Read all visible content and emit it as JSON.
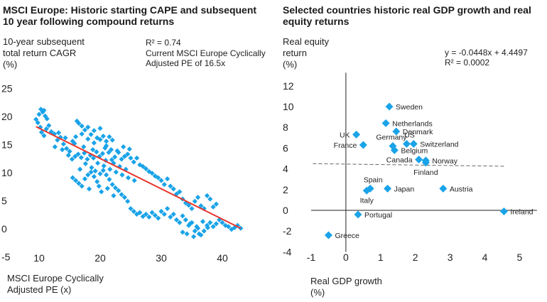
{
  "colors": {
    "marker": "#1aa3e8",
    "fit": "#e8352e",
    "axis": "#222222",
    "dash": "#666666"
  },
  "left_text": {
    "title_line1": "MSCI Europe: Historic starting CAPE and subsequent",
    "title_line2": "10 year following compound returns",
    "ylabel_line1": "10-year subsequent",
    "ylabel_line2": "total return CAGR",
    "ylabel_line3": "(%)",
    "r2": "R² = 0.74",
    "note_line1": "Current MSCI Europe Cyclically",
    "note_line2": "Adjusted PE of 16.5x",
    "xlabel_line1": "MSCI Europe Cyclically",
    "xlabel_line2": "Adjusted PE (x)"
  },
  "right_text": {
    "title_line1": "Selected countries historic real GDP growth and real",
    "title_line2": "equity returns",
    "ylabel_line1": "Real equity",
    "ylabel_line2": "return",
    "ylabel_line3": "(%)",
    "equation": "y = -0.0448x + 4.4497",
    "r2": "R² = 0.0002",
    "xlabel_line1": "Real GDP growth",
    "xlabel_line2": "(%)"
  },
  "chart_data": [
    {
      "type": "scatter",
      "title": "MSCI Europe: Historic starting CAPE and subsequent 10 year following compound returns",
      "xlabel": "MSCI Europe Cyclically Adjusted PE (x)",
      "ylabel": "10-year subsequent total return CAGR (%)",
      "xlim": [
        8,
        45
      ],
      "ylim": [
        -5,
        25
      ],
      "xticks": [
        10,
        20,
        30,
        40
      ],
      "yticks": [
        -5,
        0,
        5,
        10,
        15,
        20,
        25
      ],
      "annotations": [
        "R² = 0.74",
        "Current MSCI Europe Cyclically Adjusted PE of 16.5x"
      ],
      "trendline": {
        "x": [
          9.5,
          43
        ],
        "y": [
          18.2,
          0.1
        ]
      },
      "points": [
        [
          9.5,
          19.5
        ],
        [
          9.8,
          18.9
        ],
        [
          10,
          20.4
        ],
        [
          10.3,
          21.3
        ],
        [
          10.6,
          20.8
        ],
        [
          10.8,
          21.1
        ],
        [
          11,
          20.1
        ],
        [
          11.3,
          19.6
        ],
        [
          10.4,
          17.2
        ],
        [
          10.8,
          16.6
        ],
        [
          11.2,
          17.8
        ],
        [
          11.6,
          18.4
        ],
        [
          10.2,
          18.1
        ],
        [
          12,
          17.3
        ],
        [
          12.5,
          16.9
        ],
        [
          13,
          15.8
        ],
        [
          13.5,
          16.3
        ],
        [
          14,
          15.1
        ],
        [
          14.5,
          14.3
        ],
        [
          15,
          13.8
        ],
        [
          15.5,
          15.6
        ],
        [
          16,
          16.4
        ],
        [
          16.5,
          18.8
        ],
        [
          16.2,
          19.2
        ],
        [
          17,
          18.3
        ],
        [
          17.5,
          17.6
        ],
        [
          18,
          18.1
        ],
        [
          18.5,
          16.8
        ],
        [
          19,
          17.5
        ],
        [
          19.5,
          16.2
        ],
        [
          20,
          17.9
        ],
        [
          20.5,
          16.5
        ],
        [
          21,
          15.6
        ],
        [
          21.5,
          16.4
        ],
        [
          22,
          15.8
        ],
        [
          17,
          16.9
        ],
        [
          18,
          16
        ],
        [
          19,
          15.3
        ],
        [
          20,
          15.9
        ],
        [
          21,
          14.8
        ],
        [
          15.4,
          12.4
        ],
        [
          15.9,
          12.9
        ],
        [
          16.4,
          13.3
        ],
        [
          16.9,
          12.7
        ],
        [
          17.4,
          13.5
        ],
        [
          17.9,
          12.4
        ],
        [
          18.4,
          13.1
        ],
        [
          18.9,
          12.6
        ],
        [
          19.4,
          13.7
        ],
        [
          19.9,
          12.9
        ],
        [
          20.4,
          13.4
        ],
        [
          20.9,
          12.2
        ],
        [
          21.4,
          13.6
        ],
        [
          21.9,
          12.3
        ],
        [
          22.4,
          12.8
        ],
        [
          23,
          13.6
        ],
        [
          23.5,
          12.4
        ],
        [
          24,
          12.9
        ],
        [
          24.5,
          13.3
        ],
        [
          25,
          12.6
        ],
        [
          25.5,
          11.9
        ],
        [
          26,
          12.6
        ],
        [
          26.5,
          11.4
        ],
        [
          27,
          11.1
        ],
        [
          27.5,
          10.7
        ],
        [
          28,
          10.2
        ],
        [
          28.5,
          9.9
        ],
        [
          29,
          9.4
        ],
        [
          29.5,
          9.1
        ],
        [
          30,
          8.6
        ],
        [
          30.5,
          7.9
        ],
        [
          31,
          8.9
        ],
        [
          31.5,
          7.6
        ],
        [
          32,
          7.1
        ],
        [
          32.5,
          6.2
        ],
        [
          33,
          6.6
        ],
        [
          33.5,
          5.3
        ],
        [
          34,
          4.6
        ],
        [
          34.5,
          4.2
        ],
        [
          35,
          3.6
        ],
        [
          35.5,
          4.9
        ],
        [
          36,
          5.6
        ],
        [
          36.5,
          4.1
        ],
        [
          37,
          3.6
        ],
        [
          37.5,
          5.9
        ],
        [
          38,
          5.3
        ],
        [
          38.5,
          3.9
        ],
        [
          39,
          4.4
        ],
        [
          15.5,
          9.1
        ],
        [
          16,
          8.6
        ],
        [
          16.5,
          8.1
        ],
        [
          17,
          7.6
        ],
        [
          17.5,
          8.9
        ],
        [
          18,
          9.6
        ],
        [
          18.5,
          10.1
        ],
        [
          19,
          9.3
        ],
        [
          19.5,
          8.4
        ],
        [
          20,
          9.8
        ],
        [
          20.5,
          10.4
        ],
        [
          21,
          9.6
        ],
        [
          21.5,
          8.8
        ],
        [
          22,
          7.9
        ],
        [
          22.5,
          7.3
        ],
        [
          23,
          6.8
        ],
        [
          23.5,
          6.1
        ],
        [
          24,
          5.6
        ],
        [
          24.5,
          4.9
        ],
        [
          25,
          3.6
        ],
        [
          25.5,
          3.1
        ],
        [
          26,
          2.6
        ],
        [
          26.5,
          2.9
        ],
        [
          27,
          2.2
        ],
        [
          27.5,
          2.6
        ],
        [
          28,
          2.1
        ],
        [
          28.5,
          2.9
        ],
        [
          29,
          2.4
        ],
        [
          29.5,
          1.9
        ],
        [
          30,
          3.1
        ],
        [
          30.5,
          2.6
        ],
        [
          31,
          3.6
        ],
        [
          31.5,
          2.1
        ],
        [
          32,
          2.6
        ],
        [
          32.5,
          1.6
        ],
        [
          33,
          1.1
        ],
        [
          33.5,
          2.3
        ],
        [
          34,
          1.6
        ],
        [
          34.5,
          0.6
        ],
        [
          35,
          1.1
        ],
        [
          35.5,
          -0.4
        ],
        [
          36,
          0.1
        ],
        [
          36.5,
          -1.1
        ],
        [
          37,
          -0.4
        ],
        [
          37.5,
          0.6
        ],
        [
          38,
          1.1
        ],
        [
          38.5,
          0.4
        ],
        [
          39,
          0.9
        ],
        [
          39.5,
          1.6
        ],
        [
          40,
          1.1
        ],
        [
          40.5,
          0.6
        ],
        [
          41,
          0.4
        ],
        [
          41.5,
          -0.1
        ],
        [
          42,
          0.2
        ],
        [
          42.5,
          0.6
        ],
        [
          43,
          0.1
        ],
        [
          33.5,
          -0.6
        ],
        [
          34.2,
          -0.9
        ],
        [
          35.3,
          -1.4
        ],
        [
          36.2,
          -0.9
        ],
        [
          35.8,
          0.4
        ],
        [
          34.7,
          0.9
        ],
        [
          36.8,
          1.3
        ],
        [
          37.6,
          0.2
        ],
        [
          13.2,
          17.1
        ],
        [
          14.3,
          16.2
        ],
        [
          15.8,
          15.2
        ],
        [
          17.3,
          14.6
        ],
        [
          18.8,
          14.1
        ],
        [
          19.6,
          11.7
        ],
        [
          20.6,
          11.2
        ],
        [
          21.6,
          10.6
        ],
        [
          22.6,
          10.1
        ],
        [
          23.6,
          9.6
        ],
        [
          24.6,
          9.1
        ],
        [
          25.6,
          8.6
        ],
        [
          17.6,
          11.6
        ],
        [
          18.6,
          10.9
        ],
        [
          19.2,
          10.3
        ],
        [
          16.7,
          10.6
        ],
        [
          20.8,
          14.4
        ],
        [
          21.8,
          14.1
        ],
        [
          22.8,
          13.9
        ],
        [
          23.8,
          14.6
        ],
        [
          24.8,
          14.2
        ],
        [
          22.2,
          11.7
        ],
        [
          23.2,
          11.1
        ],
        [
          24.2,
          10.6
        ],
        [
          12.6,
          14.6
        ],
        [
          13.8,
          14.1
        ],
        [
          14.8,
          13.1
        ],
        [
          18.2,
          7.1
        ],
        [
          19.8,
          7.6
        ],
        [
          20.2,
          6.6
        ],
        [
          21.2,
          7.2
        ],
        [
          22.2,
          5.9
        ]
      ]
    },
    {
      "type": "scatter",
      "title": "Selected countries historic real GDP growth and real equity returns",
      "xlabel": "Real GDP growth (%)",
      "ylabel": "Real equity return (%)",
      "xlim": [
        -1,
        5.5
      ],
      "ylim": [
        -4,
        13
      ],
      "xticks": [
        -1,
        0,
        1,
        2,
        3,
        4,
        5
      ],
      "yticks": [
        -4,
        -2,
        0,
        2,
        4,
        6,
        8,
        10,
        12
      ],
      "annotations": [
        "y = -0.0448x + 4.4497",
        "R² = 0.0002"
      ],
      "trendline": {
        "x": [
          -0.95,
          4.55
        ],
        "y": [
          4.5,
          4.25
        ],
        "style": "dashed"
      },
      "points": [
        {
          "country": "Sweden",
          "x": 1.25,
          "y": 10.0,
          "label_side": "right"
        },
        {
          "country": "Netherlands",
          "x": 1.15,
          "y": 8.4,
          "label_side": "right"
        },
        {
          "country": "Denmark",
          "x": 1.45,
          "y": 7.6,
          "label_side": "right"
        },
        {
          "country": "UK",
          "x": 0.3,
          "y": 7.3,
          "label_side": "left"
        },
        {
          "country": "Germany",
          "x": 1.35,
          "y": 6.2,
          "label_side": "above-left"
        },
        {
          "country": "US",
          "x": 1.75,
          "y": 6.4,
          "label_side": "above"
        },
        {
          "country": "Switzerland",
          "x": 1.95,
          "y": 6.4,
          "label_side": "right"
        },
        {
          "country": "France",
          "x": 0.5,
          "y": 6.3,
          "label_side": "left"
        },
        {
          "country": "Belgium",
          "x": 1.4,
          "y": 5.8,
          "label_side": "right"
        },
        {
          "country": "Canada",
          "x": 2.1,
          "y": 4.9,
          "label_side": "left"
        },
        {
          "country": "Norway",
          "x": 2.3,
          "y": 4.8,
          "label_side": "right"
        },
        {
          "country": "Finland",
          "x": 2.3,
          "y": 4.6,
          "label_side": "below"
        },
        {
          "country": "Spain",
          "x": 0.7,
          "y": 2.1,
          "label_side": "above"
        },
        {
          "country": "Italy",
          "x": 0.6,
          "y": 1.9,
          "label_side": "below"
        },
        {
          "country": "Japan",
          "x": 1.2,
          "y": 2.1,
          "label_side": "right"
        },
        {
          "country": "Austria",
          "x": 2.8,
          "y": 2.1,
          "label_side": "right"
        },
        {
          "country": "Portugal",
          "x": 0.35,
          "y": -0.4,
          "label_side": "right"
        },
        {
          "country": "Ireland",
          "x": 4.55,
          "y": -0.1,
          "label_side": "right"
        },
        {
          "country": "Greece",
          "x": -0.5,
          "y": -2.4,
          "label_side": "right"
        }
      ]
    }
  ]
}
